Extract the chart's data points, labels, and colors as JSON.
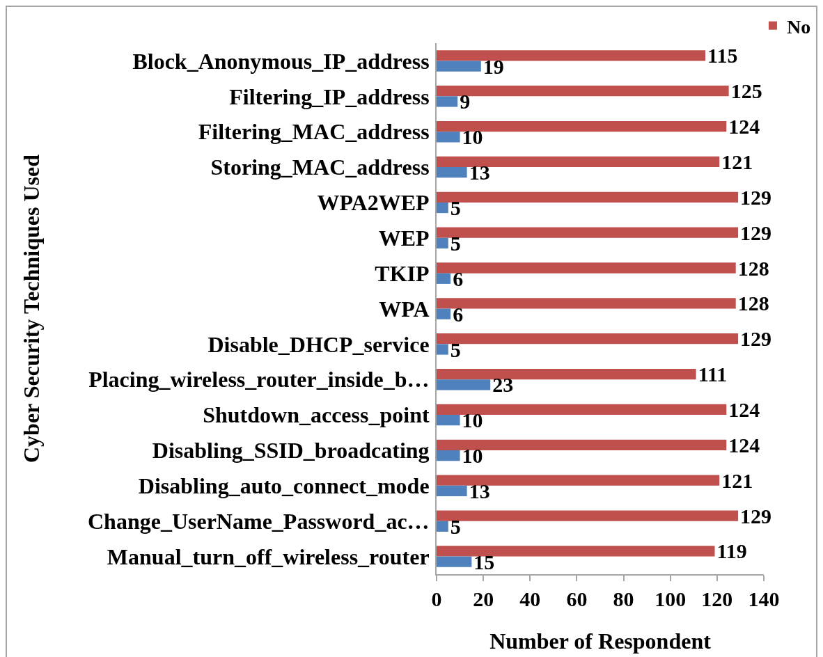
{
  "chart_data": {
    "type": "bar",
    "orientation": "horizontal",
    "categories": [
      "Block_Anonymous_IP_address",
      "Filtering_IP_address",
      "Filtering_MAC_address",
      "Storing_MAC_address",
      "WPA2WEP",
      "WEP",
      "TKIP",
      "WPA",
      "Disable_DHCP_service",
      "Placing_wireless_router_inside_b…",
      "Shutdown_access_point",
      "Disabling_SSID_broadcating",
      "Disabling_auto_connect_mode",
      "Change_UserName_Password_ac…",
      "Manual_turn_off_wireless_router"
    ],
    "series": [
      {
        "name": "No",
        "color": "#c0504d",
        "values": [
          115,
          125,
          124,
          121,
          129,
          129,
          128,
          128,
          129,
          111,
          124,
          124,
          121,
          129,
          119
        ]
      },
      {
        "color": "#4f81bd",
        "values": [
          19,
          9,
          10,
          13,
          5,
          5,
          6,
          6,
          5,
          23,
          10,
          10,
          13,
          5,
          15
        ]
      }
    ],
    "xlabel": "Number of Respondent",
    "ylabel": "Cyber Security Techniques Used",
    "xlim": [
      0,
      140
    ],
    "xticks": [
      0,
      20,
      40,
      60,
      80,
      100,
      120,
      140
    ],
    "data_labels": true,
    "legend": "top right"
  }
}
